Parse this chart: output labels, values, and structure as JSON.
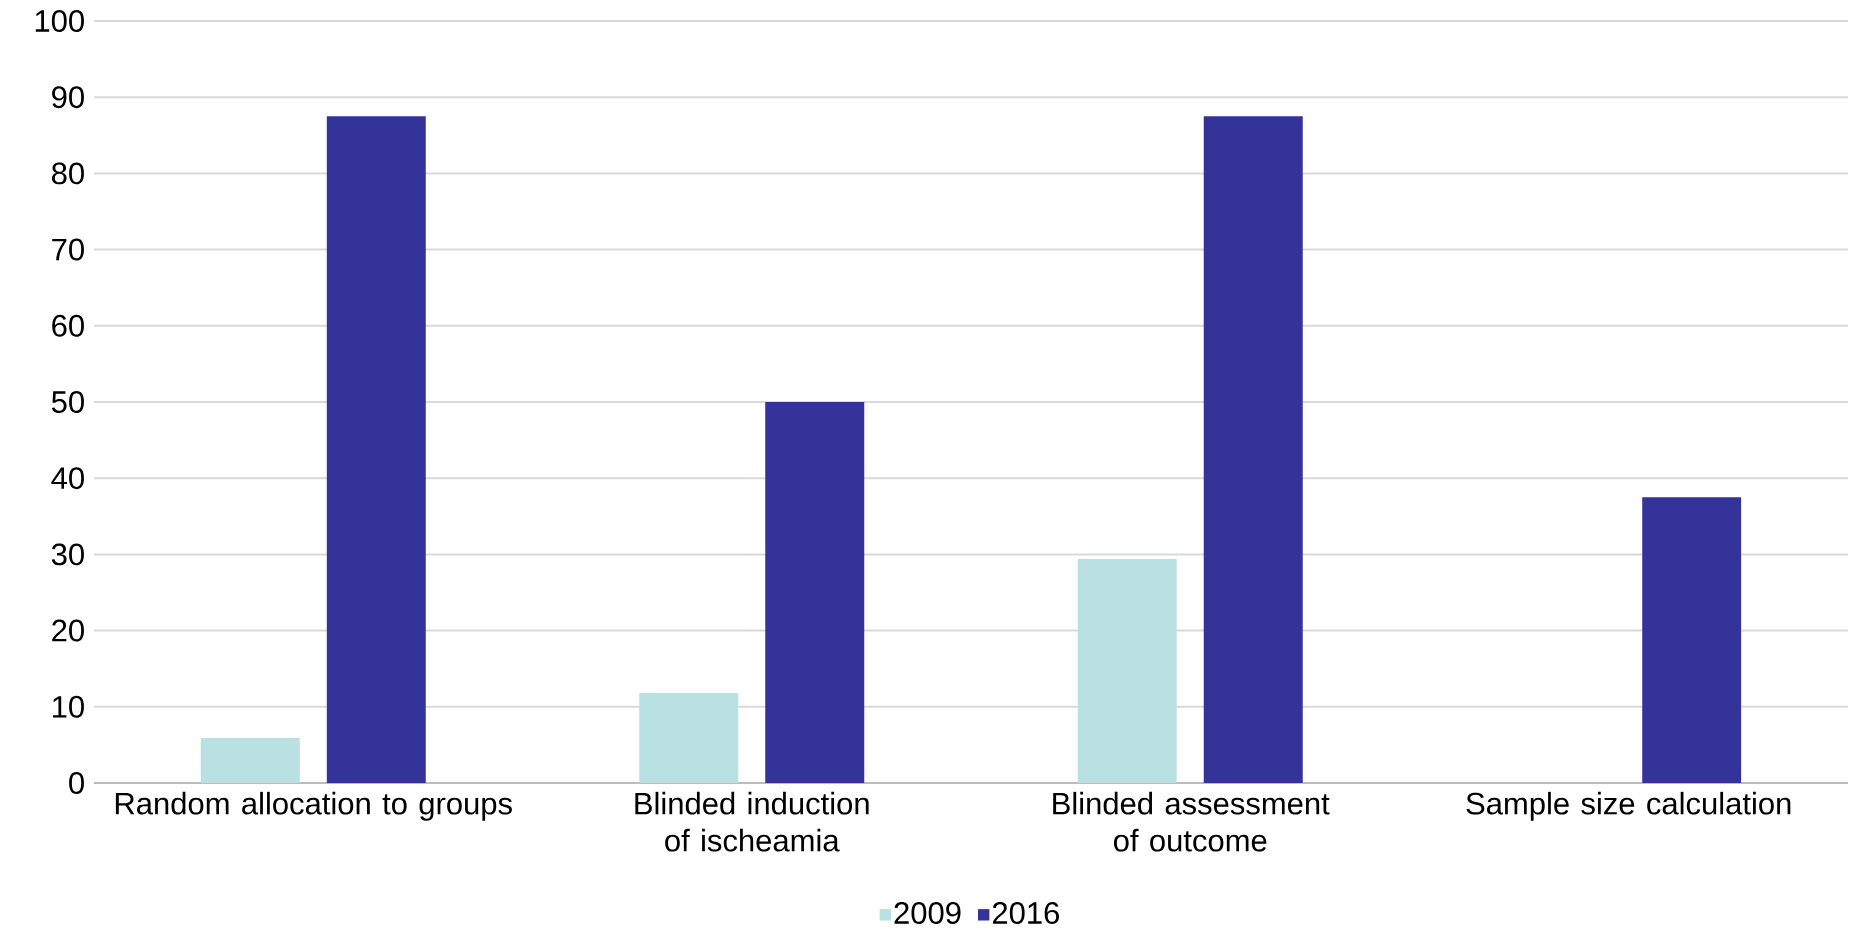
{
  "chart_data": {
    "type": "bar",
    "categories": [
      "Random allocation to groups",
      "Blinded induction of ischeamia",
      "Blinded assessment of outcome",
      "Sample size calculation"
    ],
    "series": [
      {
        "name": "2009",
        "color": "#b9e0e3",
        "values": [
          5.9,
          11.8,
          29.4,
          0
        ]
      },
      {
        "name": "2016",
        "color": "#343399",
        "values": [
          87.5,
          50,
          87.5,
          37.5
        ]
      }
    ],
    "ylim": [
      0,
      100
    ],
    "yticks": [
      0,
      10,
      20,
      30,
      40,
      50,
      60,
      70,
      80,
      90,
      100
    ],
    "grid": "y",
    "legend": "bottom"
  }
}
